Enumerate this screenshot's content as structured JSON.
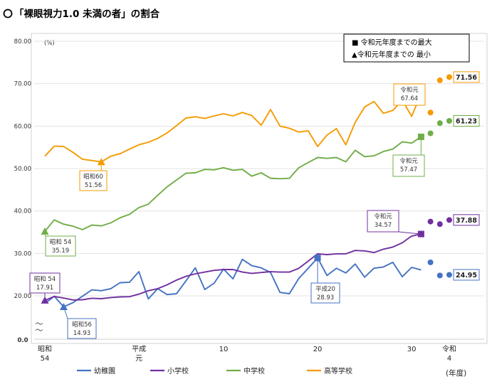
{
  "chart_data": {
    "type": "line",
    "title": "「裸眼視力1.0 未満の者」の割合",
    "unit_label": "(%)",
    "xlabel": "(年度)",
    "ylim": [
      0,
      80
    ],
    "yticks": [
      "80.00",
      "70.00",
      "60.00",
      "50.00",
      "40.00",
      "30.00",
      "20.00",
      "0.0"
    ],
    "xticks": [
      {
        "x": 1979,
        "label": "昭和\n54"
      },
      {
        "x": 1989,
        "label": "平成\n元"
      },
      {
        "x": 1998,
        "label": "10"
      },
      {
        "x": 2008,
        "label": "20"
      },
      {
        "x": 2018,
        "label": "30"
      },
      {
        "x": 2022,
        "label": "令和\n4"
      }
    ],
    "axis_break": "〜\n〜",
    "legend_box": [
      "■ 令和元年度までの最大",
      "▲令和元年度までの 最小"
    ],
    "series": [
      {
        "name": "幼稚園",
        "color": "#4472C4",
        "x": [
          1979,
          1980,
          1981,
          1982,
          1983,
          1984,
          1985,
          1986,
          1987,
          1988,
          1989,
          1990,
          1991,
          1992,
          1993,
          1994,
          1995,
          1996,
          1997,
          1998,
          1999,
          2000,
          2001,
          2002,
          2003,
          2004,
          2005,
          2006,
          2007,
          2008,
          2009,
          2010,
          2011,
          2012,
          2013,
          2014,
          2015,
          2016,
          2017,
          2018,
          2019
        ],
        "values": [
          16.5,
          19.8,
          14.93,
          16.9,
          19.8,
          21.4,
          21.2,
          21.7,
          23.1,
          23.2,
          25.7,
          18.6,
          21.7,
          20.3,
          20.5,
          23.5,
          26.6,
          21.5,
          23.0,
          26.3,
          24.0,
          28.6,
          27.1,
          26.6,
          25.5,
          20.8,
          20.5,
          24.1,
          26.5,
          28.93,
          24.8,
          26.5,
          25.4,
          27.5,
          24.4,
          26.5,
          26.8,
          27.9,
          24.5,
          26.7,
          26.1
        ],
        "extra_x": [
          2020,
          2021,
          2022
        ],
        "extra_values": [
          27.9,
          24.8,
          24.95
        ]
      },
      {
        "name": "小学校",
        "color": "#7030A0",
        "x": [
          1979,
          1980,
          1981,
          1982,
          1983,
          1984,
          1985,
          1986,
          1987,
          1988,
          1989,
          1990,
          1991,
          1992,
          1993,
          1994,
          1995,
          1996,
          1997,
          1998,
          1999,
          2000,
          2001,
          2002,
          2003,
          2004,
          2005,
          2006,
          2007,
          2008,
          2009,
          2010,
          2011,
          2012,
          2013,
          2014,
          2015,
          2016,
          2017,
          2018,
          2019
        ],
        "values": [
          17.91,
          19.7,
          19.0,
          18.1,
          18.2,
          18.9,
          18.7,
          19.2,
          19.5,
          19.6,
          20.4,
          21.2,
          21.7,
          22.6,
          23.7,
          24.6,
          25.2,
          25.6,
          26.0,
          26.2,
          26.2,
          25.6,
          25.3,
          25.5,
          25.7,
          25.6,
          25.6,
          26.5,
          28.2,
          29.9,
          29.7,
          29.9,
          29.9,
          30.7,
          30.6,
          30.2,
          31.0,
          31.5,
          32.5,
          34.1,
          34.57
        ],
        "extra_x": [
          2020,
          2021,
          2022
        ],
        "extra_values": [
          37.5,
          36.9,
          37.88
        ]
      },
      {
        "name": "中学校",
        "color": "#70AD47",
        "x": [
          1979,
          1980,
          1981,
          1982,
          1983,
          1984,
          1985,
          1986,
          1987,
          1988,
          1989,
          1990,
          1991,
          1992,
          1993,
          1994,
          1995,
          1996,
          1997,
          1998,
          1999,
          2000,
          2001,
          2002,
          2003,
          2004,
          2005,
          2006,
          2007,
          2008,
          2009,
          2010,
          2011,
          2012,
          2013,
          2014,
          2015,
          2016,
          2017,
          2018,
          2019
        ],
        "values": [
          35.19,
          37.9,
          36.9,
          36.4,
          35.6,
          36.7,
          36.5,
          37.2,
          38.4,
          39.2,
          40.8,
          41.6,
          43.7,
          45.7,
          47.3,
          48.9,
          49.0,
          49.8,
          49.7,
          50.2,
          49.6,
          49.8,
          48.2,
          49.0,
          47.7,
          47.6,
          47.7,
          50.2,
          51.4,
          52.6,
          52.4,
          52.6,
          51.6,
          54.3,
          52.8,
          53.0,
          54.0,
          54.6,
          56.3,
          56.0,
          57.47
        ],
        "extra_x": [
          2020,
          2021,
          2022
        ],
        "extra_values": [
          58.3,
          60.7,
          61.23
        ]
      },
      {
        "name": "高等学校",
        "color": "#F59B00",
        "x": [
          1979,
          1980,
          1981,
          1982,
          1983,
          1984,
          1985,
          1986,
          1987,
          1988,
          1989,
          1990,
          1991,
          1992,
          1993,
          1994,
          1995,
          1996,
          1997,
          1998,
          1999,
          2000,
          2001,
          2002,
          2003,
          2004,
          2005,
          2006,
          2007,
          2008,
          2009,
          2010,
          2011,
          2012,
          2013,
          2014,
          2015,
          2016,
          2017,
          2018,
          2019
        ],
        "values": [
          52.9,
          55.3,
          55.2,
          53.8,
          52.2,
          51.9,
          51.56,
          52.9,
          53.5,
          54.6,
          55.6,
          56.2,
          57.1,
          58.4,
          60.1,
          61.9,
          62.2,
          61.8,
          62.4,
          62.9,
          62.4,
          63.2,
          62.5,
          60.2,
          63.9,
          60.0,
          59.5,
          58.6,
          58.9,
          55.2,
          57.9,
          59.4,
          55.6,
          60.9,
          64.5,
          65.8,
          63.0,
          63.7,
          66.1,
          62.3,
          67.64
        ],
        "extra_x": [
          2020,
          2021,
          2022
        ],
        "extra_values": [
          63.2,
          70.8,
          71.56
        ]
      }
    ],
    "callouts": [
      {
        "series": 3,
        "year": 2019,
        "kind": "max",
        "label": "令和元\n67.64"
      },
      {
        "series": 3,
        "year": 1985,
        "kind": "min",
        "label": "昭和60\n51.56"
      },
      {
        "series": 2,
        "year": 2019,
        "kind": "max",
        "label": "令和元\n57.47"
      },
      {
        "series": 2,
        "year": 1979,
        "kind": "min",
        "label": "昭和 54\n35.19"
      },
      {
        "series": 1,
        "year": 2019,
        "kind": "max",
        "label": "令和元\n34.57"
      },
      {
        "series": 1,
        "year": 1979,
        "kind": "min",
        "label": "昭和 54\n17.91"
      },
      {
        "series": 0,
        "year": 2008,
        "kind": "max",
        "label": "平成20\n28.93"
      },
      {
        "series": 0,
        "year": 1981,
        "kind": "min",
        "label": "昭和56\n14.93"
      }
    ],
    "final_labels": [
      {
        "series": 3,
        "label": "71.56"
      },
      {
        "series": 2,
        "label": "61.23"
      },
      {
        "series": 1,
        "label": "37.88"
      },
      {
        "series": 0,
        "label": "24.95"
      }
    ]
  }
}
